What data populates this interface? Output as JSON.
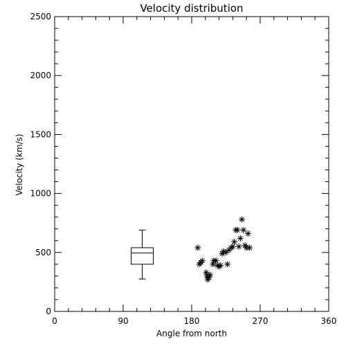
{
  "chart_data": {
    "type": "scatter",
    "title": "Velocity distribution",
    "xlabel": "Angle from north",
    "ylabel": "Velocity (km/s)",
    "xlim": [
      0,
      360
    ],
    "ylim": [
      0,
      2500
    ],
    "xticks": [
      0,
      90,
      180,
      270,
      360
    ],
    "yticks": [
      0,
      500,
      1000,
      1500,
      2000,
      2500
    ],
    "grid": false,
    "boxplot": {
      "x": 115,
      "min": 275,
      "q1": 400,
      "median": 495,
      "q3": 540,
      "max": 690
    },
    "points": [
      {
        "x": 188,
        "y": 540
      },
      {
        "x": 190,
        "y": 400
      },
      {
        "x": 192,
        "y": 415
      },
      {
        "x": 194,
        "y": 430
      },
      {
        "x": 199,
        "y": 330
      },
      {
        "x": 200,
        "y": 300
      },
      {
        "x": 201,
        "y": 270
      },
      {
        "x": 203,
        "y": 290
      },
      {
        "x": 204,
        "y": 310
      },
      {
        "x": 208,
        "y": 400
      },
      {
        "x": 209,
        "y": 430
      },
      {
        "x": 212,
        "y": 430
      },
      {
        "x": 214,
        "y": 390
      },
      {
        "x": 216,
        "y": 380
      },
      {
        "x": 218,
        "y": 390
      },
      {
        "x": 220,
        "y": 490
      },
      {
        "x": 222,
        "y": 510
      },
      {
        "x": 225,
        "y": 500
      },
      {
        "x": 227,
        "y": 400
      },
      {
        "x": 229,
        "y": 520
      },
      {
        "x": 232,
        "y": 540
      },
      {
        "x": 234,
        "y": 550
      },
      {
        "x": 236,
        "y": 590
      },
      {
        "x": 238,
        "y": 690
      },
      {
        "x": 240,
        "y": 690
      },
      {
        "x": 242,
        "y": 550
      },
      {
        "x": 244,
        "y": 620
      },
      {
        "x": 246,
        "y": 780
      },
      {
        "x": 248,
        "y": 690
      },
      {
        "x": 250,
        "y": 560
      },
      {
        "x": 252,
        "y": 540
      },
      {
        "x": 254,
        "y": 660
      },
      {
        "x": 256,
        "y": 540
      }
    ]
  }
}
